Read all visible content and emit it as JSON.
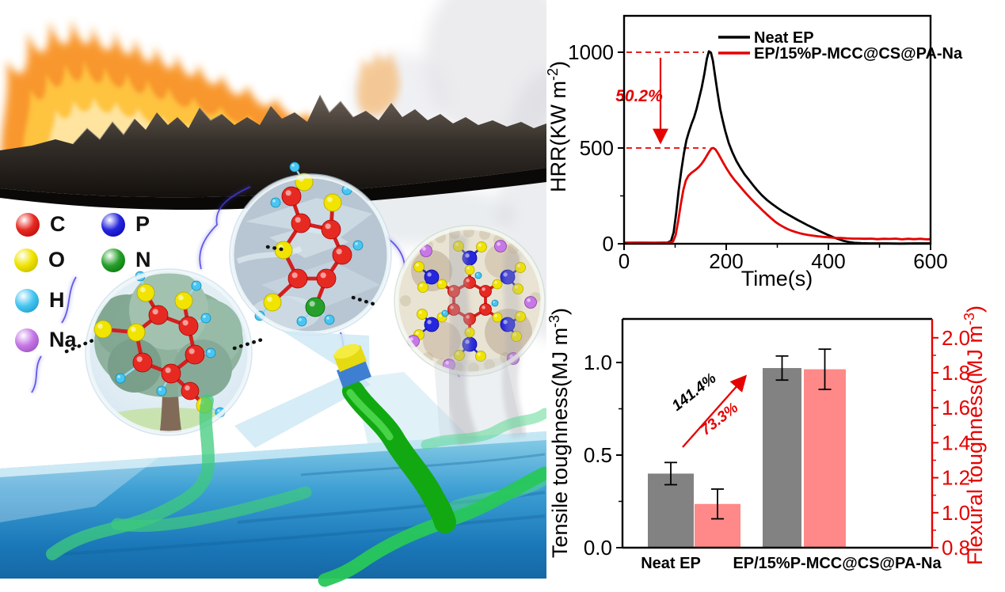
{
  "atom_legend": {
    "items": [
      {
        "symbol": "C",
        "color": "#e62a22"
      },
      {
        "symbol": "P",
        "color": "#2627dd"
      },
      {
        "symbol": "O",
        "color": "#f0e400"
      },
      {
        "symbol": "N",
        "color": "#27a02b"
      },
      {
        "symbol": "H",
        "color": "#48c6f2"
      },
      {
        "symbol": "Na",
        "color": "#c678e6"
      }
    ]
  },
  "colors": {
    "accent_red": "#e60000",
    "bar_gray": "#828282",
    "bar_pink": "#ff8989"
  },
  "chart_data": [
    {
      "id": "hrr",
      "type": "line",
      "title": "",
      "xlabel": "Time(s)",
      "ylabel": {
        "pre": "HRR(KW m",
        "sup": "-2",
        "post": ")"
      },
      "xlim": [
        0,
        600
      ],
      "ylim": [
        0,
        1190
      ],
      "xticks": [
        0,
        200,
        400,
        600
      ],
      "xminor": [
        100,
        300,
        500
      ],
      "yticks": [
        0,
        500,
        1000
      ],
      "yminor": [
        250,
        750
      ],
      "grid": false,
      "legend_position": "top-center",
      "dashed_levels": [
        1000,
        500
      ],
      "annotation": {
        "text": "50.2%",
        "color": "#e60000",
        "arrow_from": 1000,
        "arrow_to": 500
      },
      "series": [
        {
          "name": "Neat EP",
          "color": "#000000",
          "points": [
            [
              0,
              5
            ],
            [
              30,
              5
            ],
            [
              60,
              5
            ],
            [
              85,
              6
            ],
            [
              92,
              15
            ],
            [
              97,
              60
            ],
            [
              102,
              160
            ],
            [
              107,
              280
            ],
            [
              112,
              380
            ],
            [
              117,
              470
            ],
            [
              122,
              540
            ],
            [
              127,
              585
            ],
            [
              132,
              625
            ],
            [
              137,
              660
            ],
            [
              142,
              705
            ],
            [
              147,
              760
            ],
            [
              152,
              815
            ],
            [
              157,
              885
            ],
            [
              162,
              965
            ],
            [
              166,
              1005
            ],
            [
              170,
              998
            ],
            [
              174,
              955
            ],
            [
              178,
              880
            ],
            [
              183,
              790
            ],
            [
              188,
              705
            ],
            [
              193,
              645
            ],
            [
              198,
              590
            ],
            [
              205,
              525
            ],
            [
              212,
              478
            ],
            [
              220,
              432
            ],
            [
              228,
              395
            ],
            [
              236,
              362
            ],
            [
              244,
              335
            ],
            [
              252,
              308
            ],
            [
              260,
              282
            ],
            [
              270,
              253
            ],
            [
              280,
              228
            ],
            [
              290,
              207
            ],
            [
              300,
              188
            ],
            [
              310,
              170
            ],
            [
              320,
              154
            ],
            [
              330,
              139
            ],
            [
              340,
              124
            ],
            [
              350,
              110
            ],
            [
              360,
              96
            ],
            [
              370,
              83
            ],
            [
              380,
              70
            ],
            [
              390,
              57
            ],
            [
              400,
              45
            ],
            [
              410,
              34
            ],
            [
              420,
              24
            ],
            [
              430,
              15
            ],
            [
              440,
              9
            ],
            [
              450,
              5
            ],
            [
              465,
              3
            ],
            [
              480,
              2
            ],
            [
              510,
              2
            ],
            [
              540,
              1
            ],
            [
              570,
              2
            ],
            [
              600,
              2
            ]
          ]
        },
        {
          "name": "EP/15%P-MCC@CS@PA-Na",
          "color": "#e60000",
          "points": [
            [
              0,
              5
            ],
            [
              30,
              6
            ],
            [
              60,
              5
            ],
            [
              88,
              6
            ],
            [
              96,
              12
            ],
            [
              101,
              45
            ],
            [
              106,
              120
            ],
            [
              111,
              205
            ],
            [
              116,
              280
            ],
            [
              121,
              330
            ],
            [
              126,
              355
            ],
            [
              131,
              368
            ],
            [
              136,
              378
            ],
            [
              141,
              388
            ],
            [
              146,
              400
            ],
            [
              151,
              415
            ],
            [
              156,
              433
            ],
            [
              161,
              455
            ],
            [
              166,
              478
            ],
            [
              171,
              498
            ],
            [
              175,
              500
            ],
            [
              179,
              492
            ],
            [
              184,
              472
            ],
            [
              189,
              448
            ],
            [
              194,
              424
            ],
            [
              200,
              396
            ],
            [
              208,
              362
            ],
            [
              216,
              334
            ],
            [
              224,
              309
            ],
            [
              232,
              284
            ],
            [
              240,
              259
            ],
            [
              248,
              236
            ],
            [
              256,
              214
            ],
            [
              264,
              193
            ],
            [
              272,
              172
            ],
            [
              280,
              152
            ],
            [
              288,
              133
            ],
            [
              296,
              115
            ],
            [
              304,
              100
            ],
            [
              312,
              88
            ],
            [
              320,
              77
            ],
            [
              328,
              68
            ],
            [
              336,
              61
            ],
            [
              344,
              55
            ],
            [
              352,
              50
            ],
            [
              360,
              46
            ],
            [
              370,
              42
            ],
            [
              380,
              39
            ],
            [
              390,
              36
            ],
            [
              400,
              34
            ],
            [
              412,
              31
            ],
            [
              424,
              30
            ],
            [
              436,
              28
            ],
            [
              448,
              27
            ],
            [
              460,
              27
            ],
            [
              472,
              26
            ],
            [
              484,
              27
            ],
            [
              496,
              24
            ],
            [
              508,
              26
            ],
            [
              520,
              25
            ],
            [
              532,
              27
            ],
            [
              544,
              23
            ],
            [
              556,
              26
            ],
            [
              568,
              24
            ],
            [
              580,
              26
            ],
            [
              592,
              23
            ],
            [
              600,
              24
            ]
          ]
        }
      ]
    },
    {
      "id": "toughness",
      "type": "bar",
      "categories": [
        "Neat EP",
        "EP/15%P-MCC@CS@PA-Na"
      ],
      "left_axis": {
        "label": {
          "pre": "Tensile toughness(MJ m",
          "sup": "-3",
          "post": ")"
        },
        "color": "#000000",
        "ticks": [
          0,
          0.5,
          1
        ],
        "minor": [
          0.25,
          0.75
        ],
        "lim": [
          0,
          1.24
        ]
      },
      "right_axis": {
        "label": {
          "pre": "Flexural toughness(MJ m",
          "sup": "-3",
          "post": ")"
        },
        "color": "#e60000",
        "ticks": [
          0.8,
          1.0,
          1.2,
          1.4,
          1.6,
          1.8,
          2.0
        ],
        "minor": [
          0.9,
          1.1,
          1.3,
          1.5,
          1.7,
          1.9
        ],
        "lim": [
          0.8,
          2.11
        ]
      },
      "series": [
        {
          "name": "Tensile toughness",
          "axis": "left",
          "color": "#828282",
          "values": [
            0.4,
            0.97
          ],
          "errors": [
            0.06,
            0.065
          ]
        },
        {
          "name": "Flexural toughness",
          "axis": "right",
          "color": "#ff8989",
          "values": [
            1.05,
            1.82
          ],
          "errors": [
            0.085,
            0.115
          ]
        }
      ],
      "annotations": [
        {
          "text": "141.4%",
          "color": "#000000"
        },
        {
          "text": "73.3%",
          "color": "#e60000"
        }
      ]
    }
  ]
}
